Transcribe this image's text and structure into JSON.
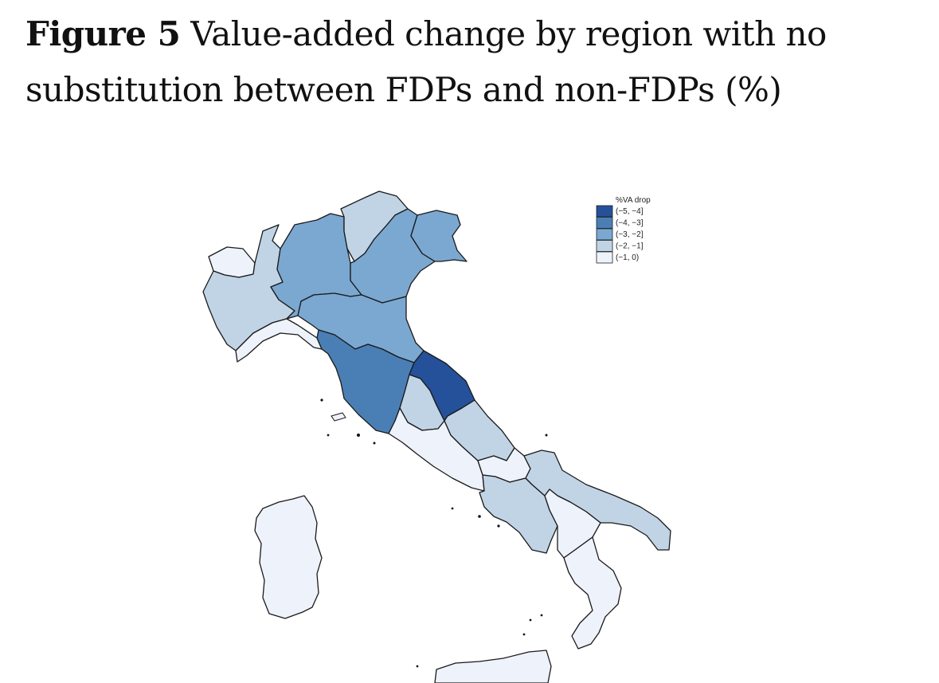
{
  "caption": {
    "label": "Figure 5",
    "text": "Value-added change by region with no substitution between FDPs and non-FDPs (%)"
  },
  "legend": {
    "title": "%VA drop",
    "classes": [
      {
        "label": "(−5, −4]",
        "color": "#24519a"
      },
      {
        "label": "(−4, −3]",
        "color": "#4a7fb6"
      },
      {
        "label": "(−3, −2]",
        "color": "#7aa8d1"
      },
      {
        "label": "(−2, −1]",
        "color": "#c0d4e6"
      },
      {
        "label": "(−1, 0)",
        "color": "#eef2fb"
      }
    ]
  },
  "regions": [
    {
      "id": "valle-d-aosta",
      "class": 4
    },
    {
      "id": "piemonte",
      "class": 3
    },
    {
      "id": "liguria",
      "class": 4
    },
    {
      "id": "lombardia",
      "class": 2
    },
    {
      "id": "trentino-alto-adige",
      "class": 3
    },
    {
      "id": "veneto",
      "class": 2
    },
    {
      "id": "friuli-venezia-giulia",
      "class": 2
    },
    {
      "id": "emilia-romagna",
      "class": 2
    },
    {
      "id": "toscana",
      "class": 1
    },
    {
      "id": "umbria",
      "class": 3
    },
    {
      "id": "marche",
      "class": 0
    },
    {
      "id": "lazio",
      "class": 4
    },
    {
      "id": "abruzzo",
      "class": 3
    },
    {
      "id": "molise",
      "class": 4
    },
    {
      "id": "campania",
      "class": 3
    },
    {
      "id": "puglia",
      "class": 3
    },
    {
      "id": "basilicata",
      "class": 4
    },
    {
      "id": "calabria",
      "class": 4
    },
    {
      "id": "sicilia",
      "class": 4
    },
    {
      "id": "sardegna",
      "class": 4
    }
  ]
}
